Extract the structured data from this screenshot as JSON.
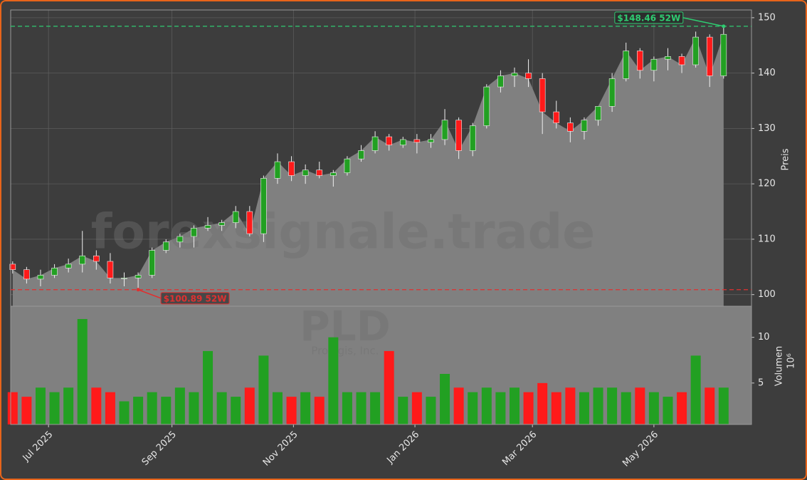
{
  "chart_data": {
    "type": "candlestick",
    "watermark": "forexsignale.trade",
    "ticker": "PLD",
    "company": "Prologis, Inc.",
    "y_label": "Preis",
    "y2_label": "Volumen",
    "y2_scale_label": "10⁶",
    "up_color": "#22a022",
    "down_color": "#ff1a1a",
    "area_color": "#808080",
    "grid": true,
    "xlim": [
      "2025-06-12",
      "2026-06-19"
    ],
    "xticks": [
      {
        "value": "2025-07-01",
        "label": "Jul 2025"
      },
      {
        "value": "2025-09-01",
        "label": "Sep 2025"
      },
      {
        "value": "2025-11-01",
        "label": "Nov 2025"
      },
      {
        "value": "2026-01-01",
        "label": "Jan 2026"
      },
      {
        "value": "2026-03-01",
        "label": "Mar 2026"
      },
      {
        "value": "2026-05-01",
        "label": "May 2026"
      }
    ],
    "ylim": [
      97.9,
      151.4
    ],
    "yticks": [
      100,
      110,
      120,
      130,
      140,
      150
    ],
    "y2lim": [
      0.47,
      13.4
    ],
    "y2ticks": [
      5,
      10
    ],
    "high_52w": {
      "value": 148.46,
      "label": "$148.46 52W",
      "date": "2026-06-05",
      "color": "#2ecc71"
    },
    "low_52w": {
      "value": 100.89,
      "label": "$100.89 52W",
      "date": "2025-08-15",
      "color": "#e03030"
    },
    "x": [
      "2025-06-13",
      "2025-06-20",
      "2025-06-27",
      "2025-07-04",
      "2025-07-11",
      "2025-07-18",
      "2025-07-25",
      "2025-08-01",
      "2025-08-08",
      "2025-08-15",
      "2025-08-22",
      "2025-08-29",
      "2025-09-05",
      "2025-09-12",
      "2025-09-19",
      "2025-09-26",
      "2025-10-03",
      "2025-10-10",
      "2025-10-17",
      "2025-10-24",
      "2025-10-31",
      "2025-11-07",
      "2025-11-14",
      "2025-11-21",
      "2025-11-28",
      "2025-12-05",
      "2025-12-12",
      "2025-12-19",
      "2025-12-26",
      "2026-01-02",
      "2026-01-09",
      "2026-01-16",
      "2026-01-23",
      "2026-01-30",
      "2026-02-06",
      "2026-02-13",
      "2026-02-20",
      "2026-02-27",
      "2026-03-06",
      "2026-03-13",
      "2026-03-20",
      "2026-03-27",
      "2026-04-03",
      "2026-04-10",
      "2026-04-17",
      "2026-04-24",
      "2026-05-01",
      "2026-05-08",
      "2026-05-15",
      "2026-05-22",
      "2026-05-29",
      "2026-06-05"
    ],
    "open": [
      105.5,
      104.5,
      102.8,
      103.5,
      104.8,
      105.5,
      107,
      106,
      103,
      103,
      103.5,
      108,
      109.5,
      110.5,
      112,
      112.5,
      113,
      115,
      111,
      121,
      124,
      121.5,
      122.5,
      121.5,
      122,
      124.5,
      126,
      128.5,
      127,
      128,
      127.5,
      128,
      131.5,
      126,
      130.5,
      137.5,
      139.5,
      140,
      139,
      133,
      131,
      129.5,
      131.5,
      134,
      139,
      144,
      140.5,
      142.5,
      143,
      141.5,
      146.5,
      139.5
    ],
    "high": [
      106,
      105,
      104.5,
      105.5,
      106.5,
      111.5,
      108,
      107.5,
      104,
      104,
      108.5,
      110,
      111,
      112.5,
      114,
      113.5,
      116,
      116,
      121.5,
      125.5,
      125,
      123.5,
      124,
      122.5,
      125,
      127,
      129.5,
      129,
      128.5,
      129,
      129,
      133.5,
      132,
      131,
      138,
      140.5,
      141,
      142.5,
      140,
      135,
      132,
      132,
      134,
      140,
      145.5,
      144.5,
      143,
      144.5,
      143.5,
      147.5,
      147,
      148.46
    ],
    "low": [
      103.8,
      102,
      101.5,
      103,
      104,
      104,
      104.5,
      102,
      101.5,
      100.89,
      103,
      107.5,
      108.5,
      108.5,
      111.5,
      111.5,
      112,
      110.5,
      109.5,
      120,
      120.5,
      120,
      121,
      119.5,
      121.5,
      124,
      125.5,
      126,
      126.5,
      125.5,
      126.5,
      127,
      124.5,
      125,
      130,
      136.5,
      137.5,
      137.5,
      129,
      130,
      127.5,
      128,
      130.5,
      133,
      138.5,
      139,
      138.5,
      140.5,
      140,
      141,
      137.5,
      139
    ],
    "close": [
      104.5,
      102.8,
      103.5,
      104.8,
      105.5,
      107,
      106,
      103,
      103,
      103.5,
      108,
      109.5,
      110.5,
      112,
      112.5,
      113,
      115,
      111,
      121,
      124,
      121.5,
      122.5,
      121.5,
      122,
      124.5,
      126,
      128.5,
      127,
      128,
      127.5,
      128,
      131.5,
      126,
      130.5,
      137.5,
      139.5,
      140,
      139,
      133,
      131,
      129.5,
      131.5,
      134,
      139,
      144,
      140.5,
      142.5,
      143,
      141.5,
      146.5,
      139.5,
      147
    ],
    "volume": [
      4,
      3.5,
      4.5,
      4,
      4.5,
      12,
      4.5,
      4,
      3,
      3.5,
      4,
      3.5,
      4.5,
      4,
      8.5,
      4,
      3.5,
      4.5,
      8,
      4,
      3.5,
      4,
      3.5,
      10,
      4,
      4,
      4,
      8.5,
      3.5,
      4,
      3.5,
      6,
      4.5,
      4,
      4.5,
      4,
      4.5,
      4,
      5,
      4,
      4.5,
      4,
      4.5,
      4.5,
      4,
      4.5,
      4,
      3.5,
      4,
      8,
      4.5,
      4.5
    ]
  }
}
